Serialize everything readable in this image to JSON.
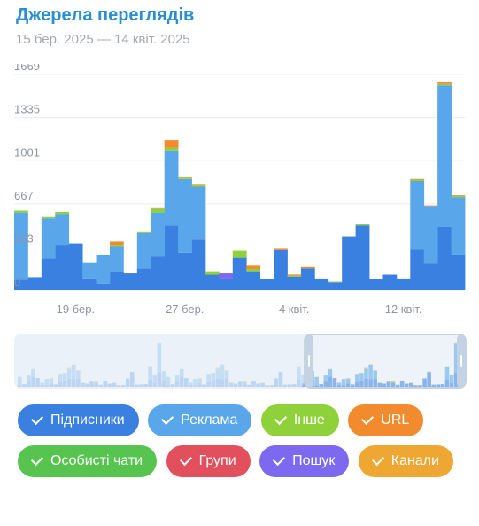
{
  "header": {
    "title": "Джерела переглядів",
    "date_range": "15 бер. 2025 — 14 квіт. 2025"
  },
  "chart_data": {
    "type": "bar",
    "stacked": true,
    "y_ticks": [
      0,
      333,
      667,
      1001,
      1335,
      1669
    ],
    "ylim": [
      0,
      1669
    ],
    "x_tick_labels": [
      {
        "label": "19 бер.",
        "index": 4
      },
      {
        "label": "27 бер.",
        "index": 12
      },
      {
        "label": "4 квіт.",
        "index": 20
      },
      {
        "label": "12 квіт.",
        "index": 28
      }
    ],
    "grid": true,
    "series": [
      {
        "name": "Підписники",
        "color": "#3a80e0",
        "values": [
          80,
          100,
          245,
          350,
          360,
          90,
          50,
          140,
          130,
          170,
          260,
          500,
          290,
          390,
          120,
          90,
          250,
          140,
          85,
          310,
          105,
          170,
          90,
          60,
          415,
          500,
          85,
          120,
          90,
          315,
          205,
          490,
          275
        ]
      },
      {
        "name": "Реклама",
        "color": "#5aa6ea",
        "values": [
          520,
          0,
          310,
          240,
          0,
          125,
          225,
          200,
          0,
          270,
          340,
          580,
          570,
          410,
          0,
          0,
          0,
          0,
          0,
          0,
          0,
          0,
          0,
          0,
          0,
          0,
          0,
          0,
          0,
          530,
          445,
          1095,
          445
        ]
      },
      {
        "name": "Інше",
        "color": "#8fd13a",
        "values": [
          15,
          0,
          10,
          15,
          0,
          0,
          0,
          10,
          0,
          15,
          30,
          20,
          10,
          10,
          20,
          0,
          55,
          25,
          0,
          0,
          8,
          0,
          0,
          5,
          0,
          10,
          0,
          0,
          0,
          10,
          0,
          10,
          10
        ]
      },
      {
        "name": "URL",
        "color": "#f28a2e",
        "values": [
          0,
          0,
          0,
          0,
          0,
          0,
          0,
          25,
          0,
          0,
          10,
          60,
          10,
          5,
          0,
          0,
          0,
          25,
          0,
          10,
          8,
          10,
          0,
          0,
          0,
          5,
          0,
          0,
          0,
          5,
          5,
          15,
          5
        ]
      },
      {
        "name": "Особисті чати",
        "color": "#56c44f",
        "values": [
          0,
          0,
          0,
          0,
          0,
          0,
          0,
          0,
          0,
          0,
          0,
          0,
          0,
          0,
          0,
          0,
          0,
          0,
          0,
          0,
          0,
          0,
          0,
          0,
          0,
          0,
          0,
          0,
          0,
          0,
          0,
          0,
          0
        ]
      },
      {
        "name": "Групи",
        "color": "#e2505e",
        "values": [
          0,
          0,
          0,
          0,
          0,
          0,
          0,
          0,
          0,
          0,
          0,
          0,
          0,
          0,
          0,
          0,
          0,
          0,
          0,
          0,
          0,
          0,
          0,
          0,
          0,
          0,
          0,
          0,
          0,
          0,
          0,
          0,
          0
        ]
      },
      {
        "name": "Пошук",
        "color": "#7c69f0",
        "values": [
          0,
          0,
          0,
          0,
          0,
          0,
          0,
          0,
          0,
          0,
          0,
          0,
          0,
          0,
          0,
          40,
          0,
          0,
          0,
          0,
          0,
          0,
          0,
          0,
          0,
          0,
          0,
          0,
          0,
          0,
          0,
          0,
          0
        ]
      },
      {
        "name": "Канали",
        "color": "#eea733",
        "values": [
          0,
          0,
          0,
          0,
          0,
          0,
          0,
          0,
          0,
          0,
          0,
          0,
          0,
          0,
          0,
          0,
          0,
          0,
          0,
          0,
          0,
          0,
          0,
          0,
          0,
          0,
          0,
          0,
          0,
          0,
          0,
          0,
          0
        ]
      }
    ]
  },
  "navigator": {
    "selection_start_fraction": 0.64,
    "selection_end_fraction": 1.0
  },
  "legend": {
    "items": [
      {
        "label": "Підписники",
        "color": "#3a80e0",
        "checked": true
      },
      {
        "label": "Реклама",
        "color": "#5aa6ea",
        "checked": true
      },
      {
        "label": "Інше",
        "color": "#8fd13a",
        "checked": true
      },
      {
        "label": "URL",
        "color": "#f28a2e",
        "checked": true
      },
      {
        "label": "Особисті чати",
        "color": "#56c44f",
        "checked": true
      },
      {
        "label": "Групи",
        "color": "#e2505e",
        "checked": true
      },
      {
        "label": "Пошук",
        "color": "#7c69f0",
        "checked": true
      },
      {
        "label": "Канали",
        "color": "#eea733",
        "checked": true
      }
    ]
  }
}
